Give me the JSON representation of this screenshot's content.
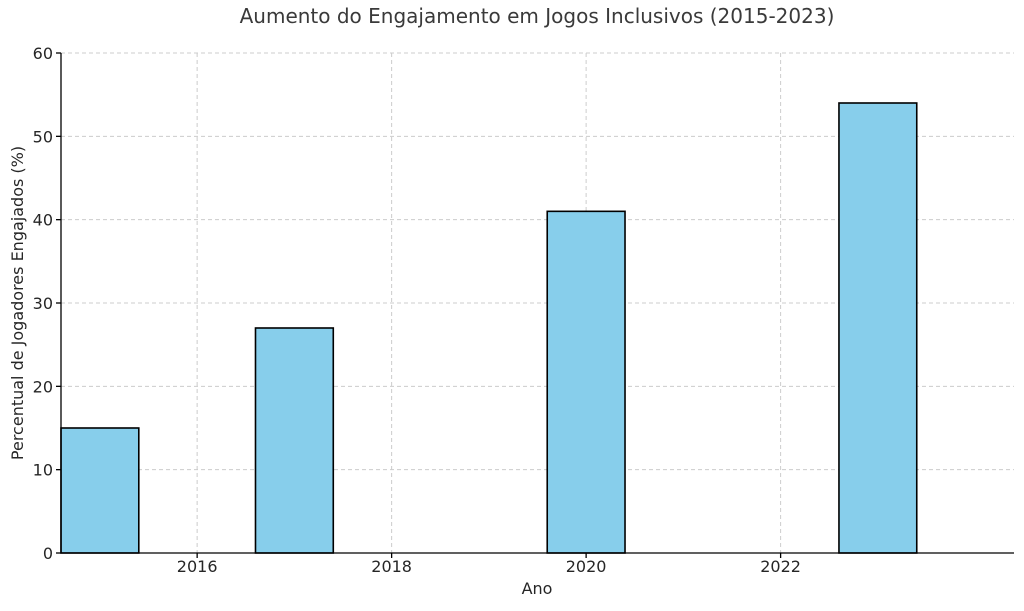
{
  "chart_data": {
    "type": "bar",
    "title": "Aumento do Engajamento em Jogos Inclusivos (2015-2023)",
    "xlabel": "Ano",
    "ylabel": "Percentual de Jogadores Engajados (%)",
    "x": [
      2015,
      2017,
      2020,
      2023
    ],
    "values": [
      15,
      27,
      41,
      54
    ],
    "xlim": [
      2014.6,
      2024.4
    ],
    "ylim": [
      0,
      60
    ],
    "xticks": [
      2016,
      2018,
      2020,
      2022
    ],
    "yticks": [
      0,
      10,
      20,
      30,
      40,
      50,
      60
    ],
    "bar_width_years": 0.8,
    "bar_color": "#87CEEB",
    "edge_color": "#000000",
    "grid": true
  }
}
